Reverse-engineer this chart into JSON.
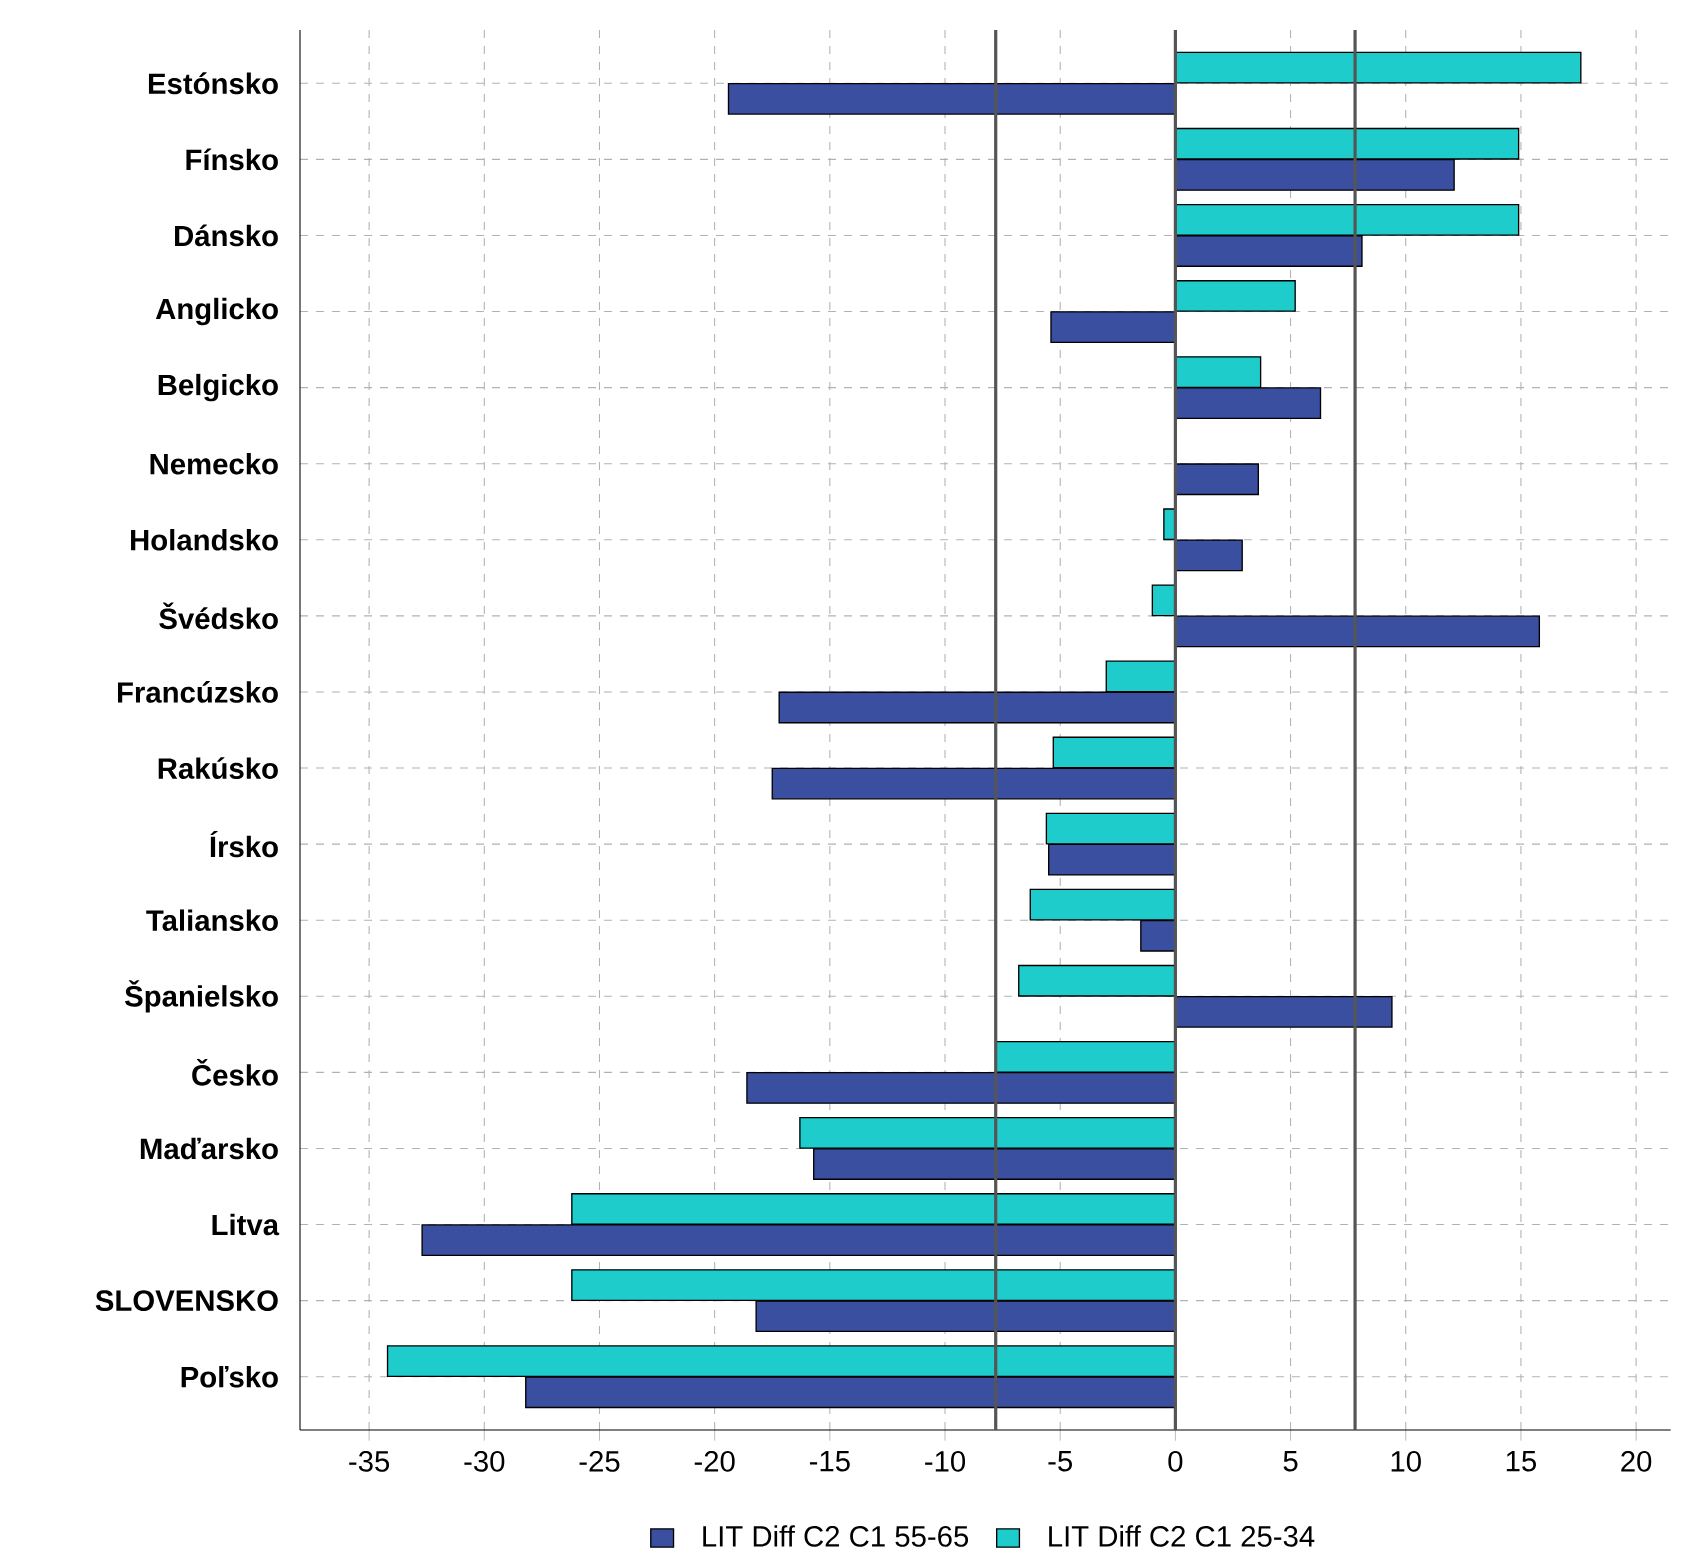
{
  "chart_data": {
    "type": "bar",
    "orientation": "horizontal",
    "categories": [
      "Estónsko",
      "Fínsko",
      "Dánsko",
      "Anglicko",
      "Belgicko",
      "Nemecko",
      "Holandsko",
      "Švédsko",
      "Francúzsko",
      "Rakúsko",
      "Írsko",
      "Taliansko",
      "Španielsko",
      "Česko",
      "Maďarsko",
      "Litva",
      "SLOVENSKO",
      "Poľsko"
    ],
    "series": [
      {
        "name": "LIT Diff C2 C1 55-65",
        "color": "#3a4fa0",
        "values": [
          -19.4,
          12.1,
          8.1,
          -5.4,
          6.3,
          3.6,
          2.9,
          15.8,
          -17.2,
          -17.5,
          -5.5,
          -1.5,
          9.4,
          -18.6,
          -15.7,
          -32.7,
          -18.2,
          -28.2
        ]
      },
      {
        "name": "LIT Diff C2 C1 25-34",
        "color": "#1fcccc",
        "values": [
          17.6,
          14.9,
          14.9,
          5.2,
          3.7,
          null,
          -0.5,
          -1.0,
          -3.0,
          -5.3,
          -5.6,
          -6.3,
          -6.8,
          -7.8,
          -16.3,
          -26.2,
          -26.2,
          -34.2
        ]
      }
    ],
    "xlim": [
      -38,
      21.5
    ],
    "xticks": [
      -35,
      -30,
      -25,
      -20,
      -15,
      -10,
      -5,
      0,
      5,
      10,
      15,
      20
    ],
    "ref_lines": [
      {
        "axis": "x",
        "value": -7.8,
        "color": "#555555"
      },
      {
        "axis": "x",
        "value": 0,
        "color": "#555555"
      },
      {
        "axis": "x",
        "value": 7.8,
        "color": "#555555"
      }
    ],
    "grid": true,
    "legend": "bottom"
  }
}
